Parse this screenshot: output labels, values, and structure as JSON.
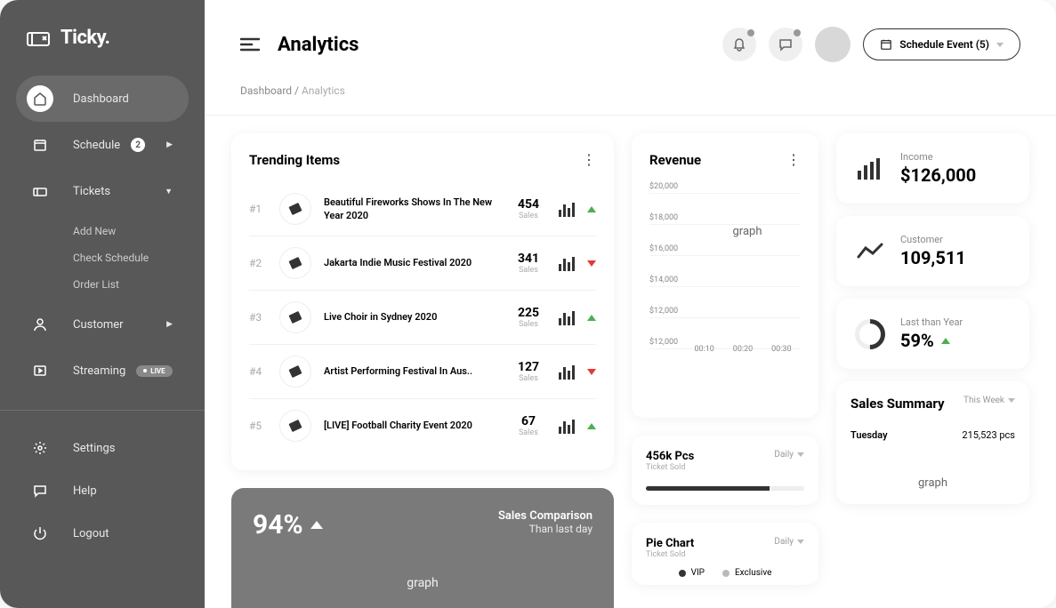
{
  "brand": "Ticky.",
  "sidebar": {
    "items": [
      {
        "label": "Dashboard",
        "active": true
      },
      {
        "label": "Schedule",
        "badge": "2"
      },
      {
        "label": "Tickets"
      },
      {
        "label": "Customer"
      },
      {
        "label": "Streaming",
        "live": "LIVE"
      }
    ],
    "tickets_sub": [
      "Add New",
      "Check Schedule",
      "Order List"
    ],
    "bottom": [
      "Settings",
      "Help",
      "Logout"
    ]
  },
  "header": {
    "title": "Analytics",
    "schedule_btn": "Schedule Event (5)"
  },
  "breadcrumb": {
    "root": "Dashboard",
    "sep": " / ",
    "current": "Analytics"
  },
  "trending": {
    "title": "Trending Items",
    "items": [
      {
        "rank": "#1",
        "title": "Beautiful Fireworks Shows In The New Year 2020",
        "value": "454",
        "label": "Sales",
        "up": true
      },
      {
        "rank": "#2",
        "title": "Jakarta Indie Music Festival 2020",
        "value": "341",
        "label": "Sales",
        "up": false
      },
      {
        "rank": "#3",
        "title": "Live Choir in Sydney 2020",
        "value": "225",
        "label": "Sales",
        "up": true
      },
      {
        "rank": "#4",
        "title": "Artist Performing Festival In Aus..",
        "value": "127",
        "label": "Sales",
        "up": false
      },
      {
        "rank": "#5",
        "title": "[LIVE] Football Charity Event 2020",
        "value": "67",
        "label": "Sales",
        "up": true
      }
    ]
  },
  "sales": {
    "pct": "94%",
    "title": "Sales Comparison",
    "sub": "Than last day",
    "graph": "graph"
  },
  "revenue": {
    "title": "Revenue",
    "y_ticks": [
      "$20,000",
      "$18,000",
      "$16,000",
      "$14,000",
      "$12,000",
      "$12,000"
    ],
    "x_ticks": [
      "00:10",
      "00:20",
      "00:30"
    ],
    "graph": "graph"
  },
  "stats": {
    "income": {
      "label": "Income",
      "value": "$126,000"
    },
    "customer": {
      "label": "Customer",
      "value": "109,511"
    },
    "last_year": {
      "label": "Last than Year",
      "value": "59%"
    }
  },
  "ticket_sold": {
    "title": "456k Pcs",
    "sub": "Ticket Sold",
    "period": "Daily",
    "progress_pct": 78
  },
  "pie": {
    "title": "Pie Chart",
    "sub": "Ticket Sold",
    "period": "Daily",
    "legend": [
      "VIP",
      "Exclusive"
    ],
    "colors": [
      "#333333",
      "#bbbbbb"
    ]
  },
  "sales_summary": {
    "title": "Sales Summary",
    "period": "This Week",
    "row": {
      "day": "Tuesday",
      "value": "215,523 pcs"
    },
    "graph": "graph"
  }
}
